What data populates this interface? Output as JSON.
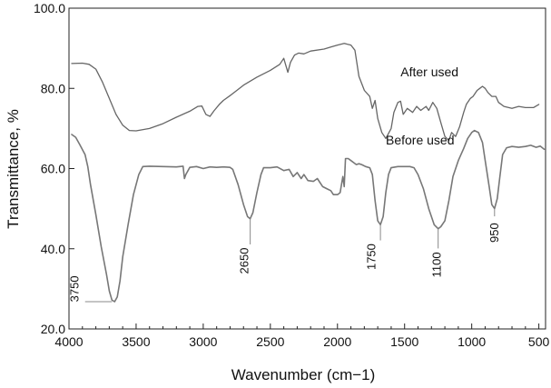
{
  "chart_data": {
    "type": "line",
    "title": "",
    "xlabel": "Wavenumber (cm−1)",
    "ylabel": "Transmittance, %",
    "xlim": [
      4000,
      450
    ],
    "ylim": [
      20,
      100
    ],
    "x_reversed": true,
    "grid": false,
    "legend": "none",
    "x_ticks": [
      {
        "value": 4000,
        "label": "4000"
      },
      {
        "value": 3500,
        "label": "3500"
      },
      {
        "value": 3000,
        "label": "3000"
      },
      {
        "value": 2500,
        "label": "2500"
      },
      {
        "value": 2000,
        "label": "2000"
      },
      {
        "value": 1500,
        "label": "1500"
      },
      {
        "value": 1000,
        "label": "1000"
      },
      {
        "value": 500,
        "label": "500"
      }
    ],
    "y_ticks": [
      {
        "value": 20,
        "label": "20.0"
      },
      {
        "value": 40,
        "label": "40.0"
      },
      {
        "value": 60,
        "label": "60.0"
      },
      {
        "value": 80,
        "label": "80.0"
      },
      {
        "value": 100,
        "label": "100.0"
      }
    ],
    "series": [
      {
        "name": "After used",
        "color": "#666666",
        "points": [
          [
            3980,
            86.2
          ],
          [
            3900,
            86.3
          ],
          [
            3850,
            86.0
          ],
          [
            3800,
            84.8
          ],
          [
            3750,
            81.5
          ],
          [
            3700,
            77.5
          ],
          [
            3650,
            73.5
          ],
          [
            3600,
            70.8
          ],
          [
            3550,
            69.5
          ],
          [
            3500,
            69.4
          ],
          [
            3400,
            70.0
          ],
          [
            3300,
            71.2
          ],
          [
            3200,
            72.8
          ],
          [
            3100,
            74.3
          ],
          [
            3040,
            75.5
          ],
          [
            3010,
            75.6
          ],
          [
            2980,
            73.5
          ],
          [
            2950,
            73.0
          ],
          [
            2920,
            74.4
          ],
          [
            2880,
            76.0
          ],
          [
            2850,
            77.0
          ],
          [
            2800,
            78.2
          ],
          [
            2750,
            79.5
          ],
          [
            2700,
            80.8
          ],
          [
            2600,
            82.8
          ],
          [
            2500,
            84.5
          ],
          [
            2430,
            86.0
          ],
          [
            2400,
            87.5
          ],
          [
            2370,
            84.0
          ],
          [
            2350,
            86.5
          ],
          [
            2320,
            88.3
          ],
          [
            2290,
            88.8
          ],
          [
            2250,
            88.6
          ],
          [
            2200,
            89.3
          ],
          [
            2100,
            89.8
          ],
          [
            2050,
            90.3
          ],
          [
            2000,
            90.8
          ],
          [
            1950,
            91.2
          ],
          [
            1900,
            90.8
          ],
          [
            1870,
            89.5
          ],
          [
            1840,
            83.0
          ],
          [
            1800,
            79.5
          ],
          [
            1760,
            78.0
          ],
          [
            1740,
            75.0
          ],
          [
            1720,
            77.0
          ],
          [
            1700,
            72.5
          ],
          [
            1670,
            69.0
          ],
          [
            1640,
            67.5
          ],
          [
            1600,
            70.0
          ],
          [
            1580,
            74.0
          ],
          [
            1550,
            76.5
          ],
          [
            1530,
            76.8
          ],
          [
            1510,
            73.5
          ],
          [
            1480,
            75.0
          ],
          [
            1440,
            74.0
          ],
          [
            1410,
            75.5
          ],
          [
            1380,
            74.5
          ],
          [
            1340,
            75.5
          ],
          [
            1320,
            74.5
          ],
          [
            1290,
            76.5
          ],
          [
            1260,
            75.0
          ],
          [
            1230,
            71.5
          ],
          [
            1200,
            68.0
          ],
          [
            1170,
            67.0
          ],
          [
            1150,
            69.0
          ],
          [
            1120,
            68.0
          ],
          [
            1090,
            70.5
          ],
          [
            1060,
            74.0
          ],
          [
            1040,
            76.0
          ],
          [
            1010,
            77.5
          ],
          [
            990,
            78.0
          ],
          [
            960,
            79.5
          ],
          [
            940,
            80.0
          ],
          [
            920,
            80.5
          ],
          [
            900,
            80.0
          ],
          [
            880,
            79.0
          ],
          [
            850,
            78.0
          ],
          [
            820,
            78.0
          ],
          [
            800,
            76.5
          ],
          [
            760,
            75.5
          ],
          [
            700,
            75.0
          ],
          [
            650,
            75.5
          ],
          [
            600,
            75.2
          ],
          [
            540,
            75.2
          ],
          [
            500,
            76.0
          ]
        ]
      },
      {
        "name": "Before used",
        "color": "#777777",
        "points": [
          [
            3980,
            68.5
          ],
          [
            3950,
            67.8
          ],
          [
            3920,
            66.0
          ],
          [
            3880,
            63.5
          ],
          [
            3860,
            60.5
          ],
          [
            3840,
            56.0
          ],
          [
            3800,
            48.5
          ],
          [
            3760,
            40.5
          ],
          [
            3720,
            33.5
          ],
          [
            3700,
            29.5
          ],
          [
            3680,
            27.2
          ],
          [
            3660,
            26.8
          ],
          [
            3640,
            28.0
          ],
          [
            3620,
            32.0
          ],
          [
            3600,
            38.0
          ],
          [
            3560,
            46.0
          ],
          [
            3520,
            53.5
          ],
          [
            3480,
            58.5
          ],
          [
            3450,
            60.5
          ],
          [
            3400,
            60.6
          ],
          [
            3300,
            60.5
          ],
          [
            3200,
            60.4
          ],
          [
            3150,
            60.6
          ],
          [
            3140,
            57.5
          ],
          [
            3130,
            58.5
          ],
          [
            3100,
            60.3
          ],
          [
            3050,
            60.5
          ],
          [
            3000,
            60.0
          ],
          [
            2950,
            60.4
          ],
          [
            2900,
            60.3
          ],
          [
            2850,
            60.4
          ],
          [
            2800,
            60.3
          ],
          [
            2780,
            59.8
          ],
          [
            2740,
            56.0
          ],
          [
            2700,
            51.0
          ],
          [
            2670,
            48.0
          ],
          [
            2650,
            47.5
          ],
          [
            2630,
            49.0
          ],
          [
            2600,
            54.0
          ],
          [
            2570,
            58.5
          ],
          [
            2550,
            60.2
          ],
          [
            2500,
            60.2
          ],
          [
            2450,
            60.4
          ],
          [
            2400,
            59.5
          ],
          [
            2360,
            59.8
          ],
          [
            2330,
            58.0
          ],
          [
            2300,
            59.0
          ],
          [
            2270,
            57.5
          ],
          [
            2250,
            58.5
          ],
          [
            2220,
            57.0
          ],
          [
            2180,
            56.8
          ],
          [
            2150,
            57.5
          ],
          [
            2110,
            55.5
          ],
          [
            2080,
            55.0
          ],
          [
            2050,
            54.5
          ],
          [
            2030,
            53.5
          ],
          [
            2000,
            53.5
          ],
          [
            1980,
            54.0
          ],
          [
            1960,
            58.0
          ],
          [
            1950,
            55.5
          ],
          [
            1940,
            62.5
          ],
          [
            1920,
            62.5
          ],
          [
            1900,
            62.0
          ],
          [
            1880,
            61.5
          ],
          [
            1860,
            61.0
          ],
          [
            1840,
            61.2
          ],
          [
            1820,
            61.0
          ],
          [
            1790,
            60.5
          ],
          [
            1760,
            60.2
          ],
          [
            1740,
            58.5
          ],
          [
            1720,
            52.0
          ],
          [
            1700,
            47.0
          ],
          [
            1680,
            46.0
          ],
          [
            1660,
            48.0
          ],
          [
            1640,
            54.0
          ],
          [
            1620,
            58.5
          ],
          [
            1600,
            60.2
          ],
          [
            1550,
            60.5
          ],
          [
            1500,
            60.5
          ],
          [
            1460,
            60.5
          ],
          [
            1430,
            60.2
          ],
          [
            1400,
            58.5
          ],
          [
            1360,
            55.0
          ],
          [
            1320,
            50.0
          ],
          [
            1280,
            46.0
          ],
          [
            1250,
            45.0
          ],
          [
            1230,
            45.5
          ],
          [
            1200,
            47.0
          ],
          [
            1170,
            52.0
          ],
          [
            1140,
            58.0
          ],
          [
            1100,
            62.0
          ],
          [
            1060,
            65.0
          ],
          [
            1030,
            67.5
          ],
          [
            1000,
            69.0
          ],
          [
            980,
            69.5
          ],
          [
            950,
            69.0
          ],
          [
            920,
            66.5
          ],
          [
            900,
            62.0
          ],
          [
            870,
            55.5
          ],
          [
            850,
            51.0
          ],
          [
            830,
            50.0
          ],
          [
            810,
            52.5
          ],
          [
            790,
            58.0
          ],
          [
            770,
            63.5
          ],
          [
            740,
            65.2
          ],
          [
            700,
            65.5
          ],
          [
            650,
            65.3
          ],
          [
            600,
            65.5
          ],
          [
            560,
            65.8
          ],
          [
            520,
            65.3
          ],
          [
            490,
            65.6
          ],
          [
            460,
            64.8
          ]
        ]
      }
    ],
    "series_labels": [
      {
        "text": "After used",
        "x": 1530,
        "y": 83.0
      },
      {
        "text": "Before used",
        "x": 1640,
        "y": 66.0
      }
    ],
    "annotations": [
      {
        "text": "3750",
        "label_x": 3930,
        "label_y": 30.0,
        "line_from_x": 3880,
        "line_to_x": 3680,
        "line_y": 26.8,
        "leader": "horizontal"
      },
      {
        "text": "2650",
        "label_x": 2700,
        "label_y": 37.0,
        "point_x": 2650,
        "point_y": 47.5,
        "leader": "vertical"
      },
      {
        "text": "1750",
        "label_x": 1750,
        "label_y": 38.0,
        "point_x": 1680,
        "point_y": 46.0,
        "leader": "vertical"
      },
      {
        "text": "1100",
        "label_x": 1265,
        "label_y": 36.0,
        "point_x": 1250,
        "point_y": 45.0,
        "leader": "vertical"
      },
      {
        "text": "950",
        "label_x": 835,
        "label_y": 44.0,
        "point_x": 830,
        "point_y": 50.0,
        "leader": "vertical"
      }
    ]
  }
}
